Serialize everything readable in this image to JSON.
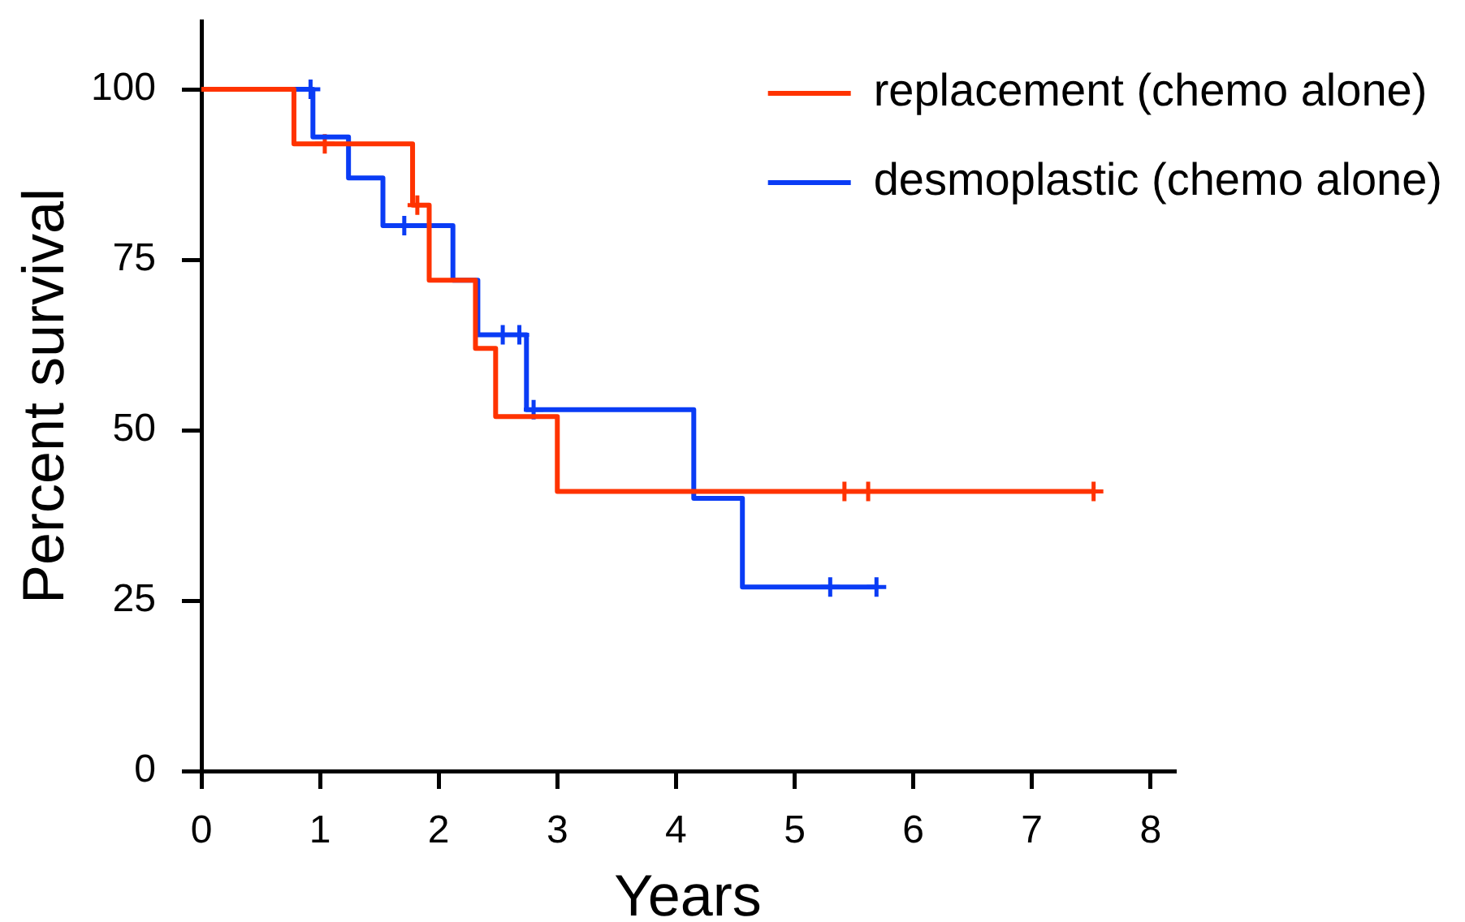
{
  "chart_data": {
    "type": "step",
    "xlabel": "Years",
    "ylabel": "Percent survival",
    "xlim": [
      0,
      8.2
    ],
    "ylim": [
      0,
      110
    ],
    "xticks": [
      0,
      1,
      2,
      3,
      4,
      5,
      6,
      7,
      8
    ],
    "yticks": [
      0,
      25,
      50,
      75,
      100
    ],
    "legend": "top right",
    "series": [
      {
        "name": "replacement (chemo alone)",
        "color": "#ff3300",
        "x": [
          0,
          0.78,
          1.78,
          1.92,
          2.31,
          2.48,
          3.0,
          7.52
        ],
        "values": [
          100,
          92,
          83,
          72,
          62,
          52,
          41,
          41
        ]
      },
      {
        "name": "desmoplastic (chemo alone)",
        "color": "#0a3cf5",
        "x": [
          0,
          0.94,
          1.24,
          1.53,
          2.12,
          2.33,
          2.74,
          4.15,
          4.56,
          5.69
        ],
        "values": [
          100,
          93,
          87,
          80,
          72,
          64,
          53,
          40,
          27,
          27
        ]
      },
      {
        "type": "scatter",
        "color": "#ff3300",
        "marker": "cross",
        "x": [
          1.04,
          1.82,
          5.42,
          5.62,
          7.52
        ],
        "values": [
          92,
          83,
          41,
          41,
          41
        ]
      },
      {
        "type": "scatter",
        "color": "#0a3cf5",
        "marker": "cross",
        "x": [
          0.92,
          1.71,
          2.54,
          2.68,
          2.8,
          5.3,
          5.69
        ],
        "values": [
          100,
          80,
          64,
          64,
          53,
          27,
          27
        ]
      }
    ]
  }
}
